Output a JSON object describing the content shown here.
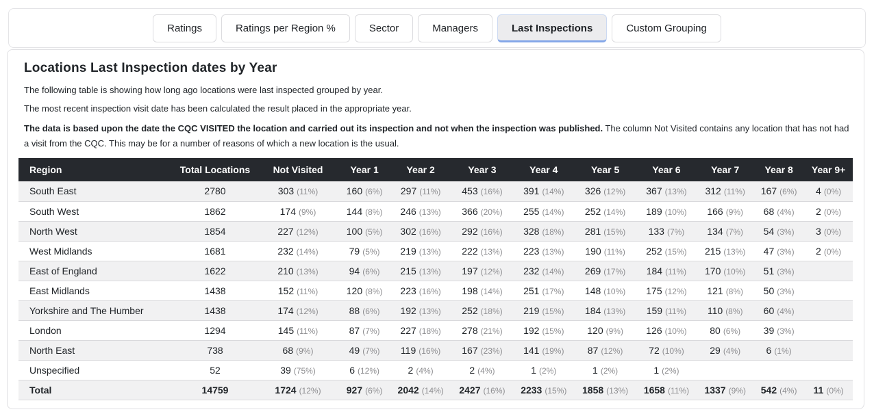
{
  "tabs": [
    {
      "label": "Ratings",
      "active": false
    },
    {
      "label": "Ratings per Region %",
      "active": false
    },
    {
      "label": "Sector",
      "active": false
    },
    {
      "label": "Managers",
      "active": false
    },
    {
      "label": "Last Inspections",
      "active": true
    },
    {
      "label": "Custom Grouping",
      "active": false
    }
  ],
  "page": {
    "title": "Locations Last Inspection dates by Year",
    "intro1": "The following table is showing how long ago locations were last inspected grouped by year.",
    "intro2": "The most recent inspection visit date has been calculated the result placed in the appropriate year.",
    "note_bold": "The data is based upon the date the CQC VISITED the location and carried out its inspection and not when the inspection was published.",
    "note_rest": " The column Not Visited contains any location that has not had a visit from the CQC. This may be for a number of reasons of which a new location is the usual."
  },
  "colors": {
    "header_bg": "#26292e",
    "header_text": "#ffffff",
    "stripe_bg": "#f1f1f2",
    "percent_text": "#8d8d90",
    "active_tab_underline": "#84a7e8",
    "active_tab_bg": "#ececee"
  },
  "table": {
    "columns": [
      "Region",
      "Total Locations",
      "Not Visited",
      "Year 1",
      "Year 2",
      "Year 3",
      "Year 4",
      "Year 5",
      "Year 6",
      "Year 7",
      "Year 8",
      "Year 9+"
    ],
    "rows": [
      {
        "region": "South East",
        "total": "2780",
        "cells": [
          [
            "303",
            "(11%)"
          ],
          [
            "160",
            "(6%)"
          ],
          [
            "297",
            "(11%)"
          ],
          [
            "453",
            "(16%)"
          ],
          [
            "391",
            "(14%)"
          ],
          [
            "326",
            "(12%)"
          ],
          [
            "367",
            "(13%)"
          ],
          [
            "312",
            "(11%)"
          ],
          [
            "167",
            "(6%)"
          ],
          [
            "4",
            "(0%)"
          ]
        ]
      },
      {
        "region": "South West",
        "total": "1862",
        "cells": [
          [
            "174",
            "(9%)"
          ],
          [
            "144",
            "(8%)"
          ],
          [
            "246",
            "(13%)"
          ],
          [
            "366",
            "(20%)"
          ],
          [
            "255",
            "(14%)"
          ],
          [
            "252",
            "(14%)"
          ],
          [
            "189",
            "(10%)"
          ],
          [
            "166",
            "(9%)"
          ],
          [
            "68",
            "(4%)"
          ],
          [
            "2",
            "(0%)"
          ]
        ]
      },
      {
        "region": "North West",
        "total": "1854",
        "cells": [
          [
            "227",
            "(12%)"
          ],
          [
            "100",
            "(5%)"
          ],
          [
            "302",
            "(16%)"
          ],
          [
            "292",
            "(16%)"
          ],
          [
            "328",
            "(18%)"
          ],
          [
            "281",
            "(15%)"
          ],
          [
            "133",
            "(7%)"
          ],
          [
            "134",
            "(7%)"
          ],
          [
            "54",
            "(3%)"
          ],
          [
            "3",
            "(0%)"
          ]
        ]
      },
      {
        "region": "West Midlands",
        "total": "1681",
        "cells": [
          [
            "232",
            "(14%)"
          ],
          [
            "79",
            "(5%)"
          ],
          [
            "219",
            "(13%)"
          ],
          [
            "222",
            "(13%)"
          ],
          [
            "223",
            "(13%)"
          ],
          [
            "190",
            "(11%)"
          ],
          [
            "252",
            "(15%)"
          ],
          [
            "215",
            "(13%)"
          ],
          [
            "47",
            "(3%)"
          ],
          [
            "2",
            "(0%)"
          ]
        ]
      },
      {
        "region": "East of England",
        "total": "1622",
        "cells": [
          [
            "210",
            "(13%)"
          ],
          [
            "94",
            "(6%)"
          ],
          [
            "215",
            "(13%)"
          ],
          [
            "197",
            "(12%)"
          ],
          [
            "232",
            "(14%)"
          ],
          [
            "269",
            "(17%)"
          ],
          [
            "184",
            "(11%)"
          ],
          [
            "170",
            "(10%)"
          ],
          [
            "51",
            "(3%)"
          ],
          null
        ]
      },
      {
        "region": "East Midlands",
        "total": "1438",
        "cells": [
          [
            "152",
            "(11%)"
          ],
          [
            "120",
            "(8%)"
          ],
          [
            "223",
            "(16%)"
          ],
          [
            "198",
            "(14%)"
          ],
          [
            "251",
            "(17%)"
          ],
          [
            "148",
            "(10%)"
          ],
          [
            "175",
            "(12%)"
          ],
          [
            "121",
            "(8%)"
          ],
          [
            "50",
            "(3%)"
          ],
          null
        ]
      },
      {
        "region": "Yorkshire and The Humber",
        "total": "1438",
        "cells": [
          [
            "174",
            "(12%)"
          ],
          [
            "88",
            "(6%)"
          ],
          [
            "192",
            "(13%)"
          ],
          [
            "252",
            "(18%)"
          ],
          [
            "219",
            "(15%)"
          ],
          [
            "184",
            "(13%)"
          ],
          [
            "159",
            "(11%)"
          ],
          [
            "110",
            "(8%)"
          ],
          [
            "60",
            "(4%)"
          ],
          null
        ]
      },
      {
        "region": "London",
        "total": "1294",
        "cells": [
          [
            "145",
            "(11%)"
          ],
          [
            "87",
            "(7%)"
          ],
          [
            "227",
            "(18%)"
          ],
          [
            "278",
            "(21%)"
          ],
          [
            "192",
            "(15%)"
          ],
          [
            "120",
            "(9%)"
          ],
          [
            "126",
            "(10%)"
          ],
          [
            "80",
            "(6%)"
          ],
          [
            "39",
            "(3%)"
          ],
          null
        ]
      },
      {
        "region": "North East",
        "total": "738",
        "cells": [
          [
            "68",
            "(9%)"
          ],
          [
            "49",
            "(7%)"
          ],
          [
            "119",
            "(16%)"
          ],
          [
            "167",
            "(23%)"
          ],
          [
            "141",
            "(19%)"
          ],
          [
            "87",
            "(12%)"
          ],
          [
            "72",
            "(10%)"
          ],
          [
            "29",
            "(4%)"
          ],
          [
            "6",
            "(1%)"
          ],
          null
        ]
      },
      {
        "region": "Unspecified",
        "total": "52",
        "cells": [
          [
            "39",
            "(75%)"
          ],
          [
            "6",
            "(12%)"
          ],
          [
            "2",
            "(4%)"
          ],
          [
            "2",
            "(4%)"
          ],
          [
            "1",
            "(2%)"
          ],
          [
            "1",
            "(2%)"
          ],
          [
            "1",
            "(2%)"
          ],
          null,
          null,
          null
        ]
      }
    ],
    "total_row": {
      "region": "Total",
      "total": "14759",
      "cells": [
        [
          "1724",
          "(12%)"
        ],
        [
          "927",
          "(6%)"
        ],
        [
          "2042",
          "(14%)"
        ],
        [
          "2427",
          "(16%)"
        ],
        [
          "2233",
          "(15%)"
        ],
        [
          "1858",
          "(13%)"
        ],
        [
          "1658",
          "(11%)"
        ],
        [
          "1337",
          "(9%)"
        ],
        [
          "542",
          "(4%)"
        ],
        [
          "11",
          "(0%)"
        ]
      ]
    }
  }
}
